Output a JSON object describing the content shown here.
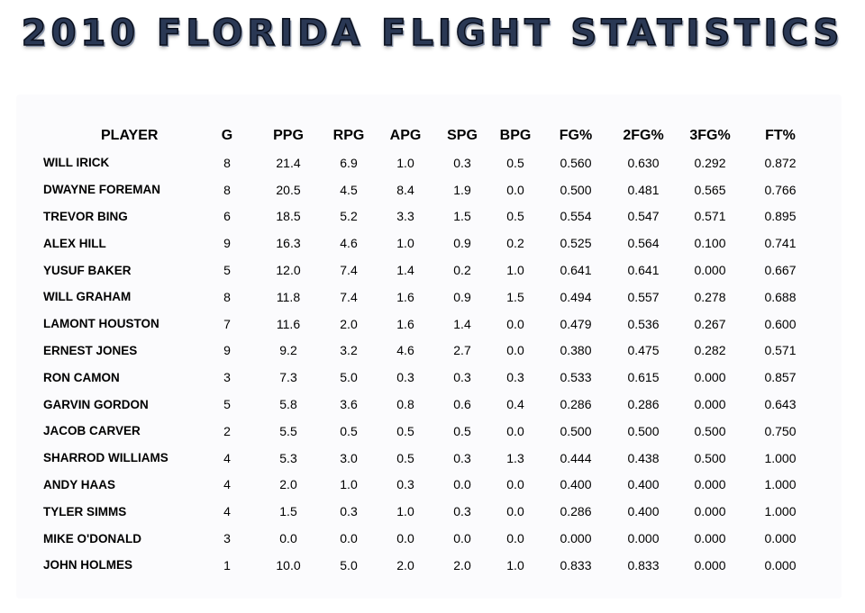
{
  "title": "2010 FLORIDA FLIGHT STATISTICS",
  "headers": [
    "PLAYER",
    "G",
    "PPG",
    "RPG",
    "APG",
    "SPG",
    "BPG",
    "FG%",
    "2FG%",
    "3FG%",
    "FT%"
  ],
  "rows": [
    [
      "WILL IRICK",
      "8",
      "21.4",
      "6.9",
      "1.0",
      "0.3",
      "0.5",
      "0.560",
      "0.630",
      "0.292",
      "0.872"
    ],
    [
      "DWAYNE FOREMAN",
      "8",
      "20.5",
      "4.5",
      "8.4",
      "1.9",
      "0.0",
      "0.500",
      "0.481",
      "0.565",
      "0.766"
    ],
    [
      "TREVOR BING",
      "6",
      "18.5",
      "5.2",
      "3.3",
      "1.5",
      "0.5",
      "0.554",
      "0.547",
      "0.571",
      "0.895"
    ],
    [
      "ALEX HILL",
      "9",
      "16.3",
      "4.6",
      "1.0",
      "0.9",
      "0.2",
      "0.525",
      "0.564",
      "0.100",
      "0.741"
    ],
    [
      "YUSUF BAKER",
      "5",
      "12.0",
      "7.4",
      "1.4",
      "0.2",
      "1.0",
      "0.641",
      "0.641",
      "0.000",
      "0.667"
    ],
    [
      "WILL GRAHAM",
      "8",
      "11.8",
      "7.4",
      "1.6",
      "0.9",
      "1.5",
      "0.494",
      "0.557",
      "0.278",
      "0.688"
    ],
    [
      "LAMONT HOUSTON",
      "7",
      "11.6",
      "2.0",
      "1.6",
      "1.4",
      "0.0",
      "0.479",
      "0.536",
      "0.267",
      "0.600"
    ],
    [
      "ERNEST JONES",
      "9",
      "9.2",
      "3.2",
      "4.6",
      "2.7",
      "0.0",
      "0.380",
      "0.475",
      "0.282",
      "0.571"
    ],
    [
      "RON CAMON",
      "3",
      "7.3",
      "5.0",
      "0.3",
      "0.3",
      "0.3",
      "0.533",
      "0.615",
      "0.000",
      "0.857"
    ],
    [
      "GARVIN GORDON",
      "5",
      "5.8",
      "3.6",
      "0.8",
      "0.6",
      "0.4",
      "0.286",
      "0.286",
      "0.000",
      "0.643"
    ],
    [
      "JACOB CARVER",
      "2",
      "5.5",
      "0.5",
      "0.5",
      "0.5",
      "0.0",
      "0.500",
      "0.500",
      "0.500",
      "0.750"
    ],
    [
      "SHARROD WILLIAMS",
      "4",
      "5.3",
      "3.0",
      "0.5",
      "0.3",
      "1.3",
      "0.444",
      "0.438",
      "0.500",
      "1.000"
    ],
    [
      "ANDY HAAS",
      "4",
      "2.0",
      "1.0",
      "0.3",
      "0.0",
      "0.0",
      "0.400",
      "0.400",
      "0.000",
      "1.000"
    ],
    [
      "TYLER SIMMS",
      "4",
      "1.5",
      "0.3",
      "1.0",
      "0.3",
      "0.0",
      "0.286",
      "0.400",
      "0.000",
      "1.000"
    ],
    [
      "MIKE O'DONALD",
      "3",
      "0.0",
      "0.0",
      "0.0",
      "0.0",
      "0.0",
      "0.000",
      "0.000",
      "0.000",
      "0.000"
    ],
    [
      "JOHN HOLMES",
      "1",
      "10.0",
      "5.0",
      "2.0",
      "2.0",
      "1.0",
      "0.833",
      "0.833",
      "0.000",
      "0.000"
    ]
  ]
}
